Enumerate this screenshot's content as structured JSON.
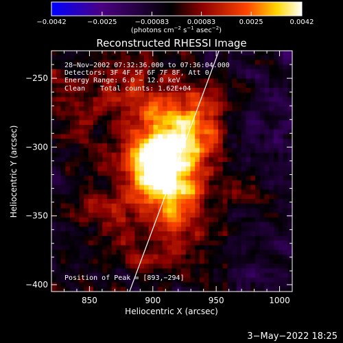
{
  "colorbar": {
    "tick_labels": [
      "−0.0042",
      "−0.0025",
      "−0.00083",
      "0.00083",
      "0.0025",
      "0.0042"
    ],
    "tick_values": [
      -0.0042,
      -0.0025,
      -0.00083,
      0.00083,
      0.0025,
      0.0042
    ],
    "range": [
      -0.0042,
      0.0042
    ],
    "units_main": "(photons cm",
    "units_exp1": "−2",
    "units_mid": " s",
    "units_exp2": "−1",
    "units_tail": " asec",
    "units_exp3": "−2",
    "units_close": ")",
    "stops": [
      "#0000ff",
      "#4b0082",
      "#000000",
      "#8b0000",
      "#ff4500",
      "#ffd700",
      "#ffffff"
    ]
  },
  "chart_data": {
    "type": "heatmap",
    "title": "Reconstructed RHESSI Image",
    "xlabel": "Heliocentric X (arcsec)",
    "ylabel": "Heliocentric Y (arcsec)",
    "xlim": [
      820,
      1010
    ],
    "ylim": [
      -405,
      -230
    ],
    "x_ticks": [
      850,
      900,
      950,
      1000
    ],
    "x_tick_labels": [
      "850",
      "900",
      "950",
      "1000"
    ],
    "y_ticks": [
      -250,
      -300,
      -350,
      -400
    ],
    "y_tick_labels": [
      "−250",
      "−300",
      "−350",
      "−400"
    ],
    "annotations": {
      "time_range": "28−Nov−2002 07:32:36.000 to 07:36:04.000",
      "detectors": "Detectors: 3F 4F 5F 6F 7F 8F, Att 0",
      "energy": "Energy Range: 6.0 − 12.0 keV",
      "clean": "Clean",
      "total_counts": "Total counts: 1.62E+04",
      "peak": "Position of Peak = [893,−294]"
    },
    "peak_position": [
      893,
      -294
    ],
    "limb_line": [
      [
        880,
        -409
      ],
      [
        953,
        -228
      ]
    ]
  },
  "footer": {
    "date": "3−May−2022 18:25"
  }
}
